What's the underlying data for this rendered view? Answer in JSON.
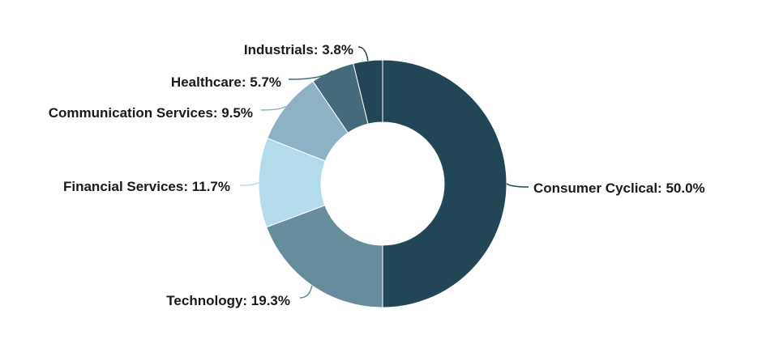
{
  "chart_data": {
    "type": "pie",
    "donut": true,
    "title": "",
    "series": [
      {
        "name": "Consumer Cyclical",
        "value": 50.0,
        "label": "Consumer Cyclical: 50.0%",
        "color": "#214756"
      },
      {
        "name": "Technology",
        "value": 19.3,
        "label": "Technology: 19.3%",
        "color": "#668d9c"
      },
      {
        "name": "Financial Services",
        "value": 11.7,
        "label": "Financial Services: 11.7%",
        "color": "#b3dcea"
      },
      {
        "name": "Communication Services",
        "value": 9.5,
        "label": "Communication Services: 9.5%",
        "color": "#8cb3c4"
      },
      {
        "name": "Healthcare",
        "value": 5.7,
        "label": "Healthcare: 5.7%",
        "color": "#436b7a"
      },
      {
        "name": "Industrials",
        "value": 3.8,
        "label": "Industrials: 3.8%",
        "color": "#214756"
      }
    ],
    "start_angle_deg": 0,
    "direction": "clockwise",
    "legend": "none"
  }
}
